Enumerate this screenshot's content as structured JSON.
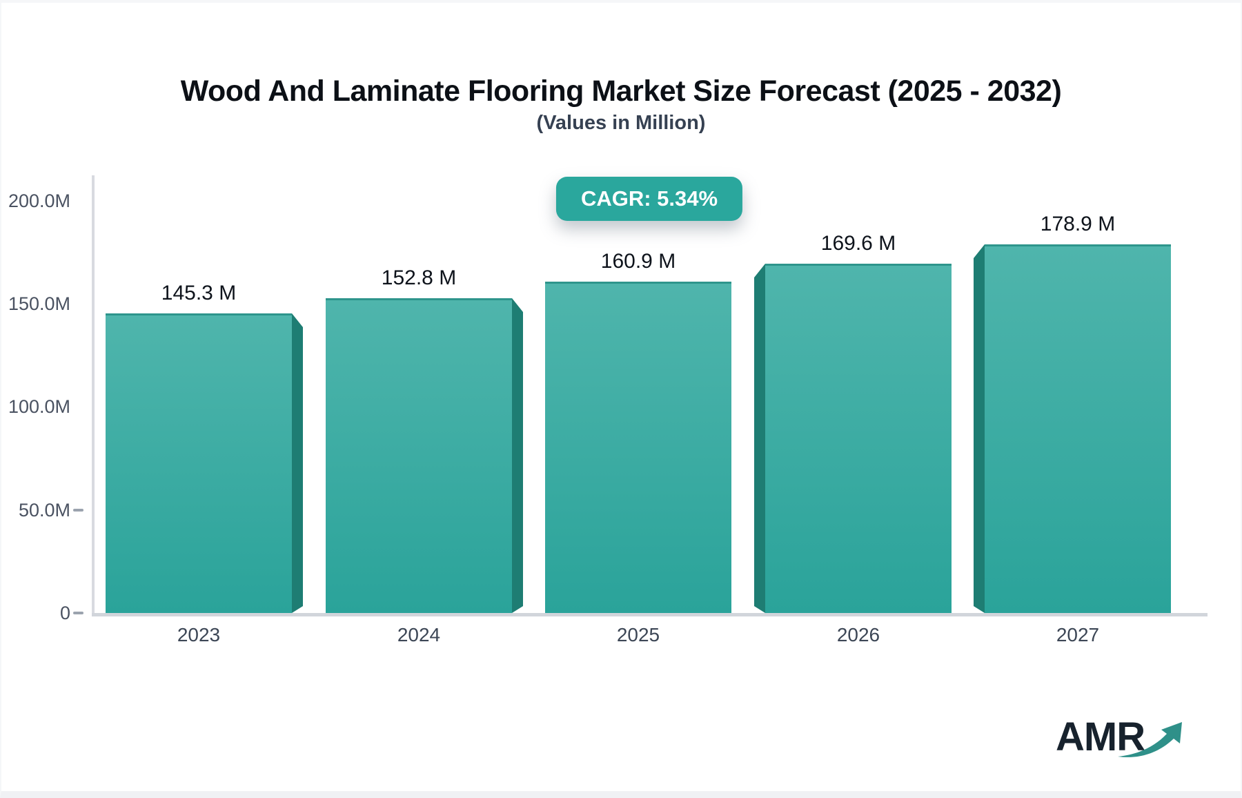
{
  "page": {
    "logo_text": "AMR"
  },
  "colors": {
    "accent_teal": "#2aa79d",
    "bar_face_top": "#4fb5ac",
    "bar_face_bottom": "#2aa39a",
    "bar_top_edge": "#2e958c",
    "bar_side_dark": "#1e7d73",
    "axis_gray": "#d8dae0",
    "logo_navy": "#17222d",
    "logo_arrow_teal": "#2f9089"
  },
  "chart_data": {
    "type": "bar",
    "title": "Wood And Laminate Flooring Market Size Forecast (2025 - 2032)",
    "subtitle": "(Values in Million)",
    "badge_label": "CAGR: 5.34%",
    "cagr_percent": "5.34%",
    "unit": "Million",
    "categories": [
      "2023",
      "2024",
      "2025",
      "2026",
      "2027"
    ],
    "values": [
      145.3,
      152.8,
      160.9,
      169.6,
      178.9
    ],
    "value_labels": [
      "145.3 M",
      "152.8 M",
      "160.9 M",
      "169.6 M",
      "178.9 M"
    ],
    "ylabel": "",
    "xlabel": "",
    "ylim": [
      0,
      200
    ],
    "grid": false,
    "legend": false,
    "y_ticks": [
      {
        "label": "200.0M",
        "value": 200,
        "dash": false
      },
      {
        "label": "150.0M",
        "value": 150,
        "dash": false
      },
      {
        "label": "100.0M",
        "value": 100,
        "dash": false
      },
      {
        "label": "50.0M",
        "value": 50,
        "dash": true
      },
      {
        "label": "0",
        "value": 0,
        "dash": true
      }
    ]
  }
}
